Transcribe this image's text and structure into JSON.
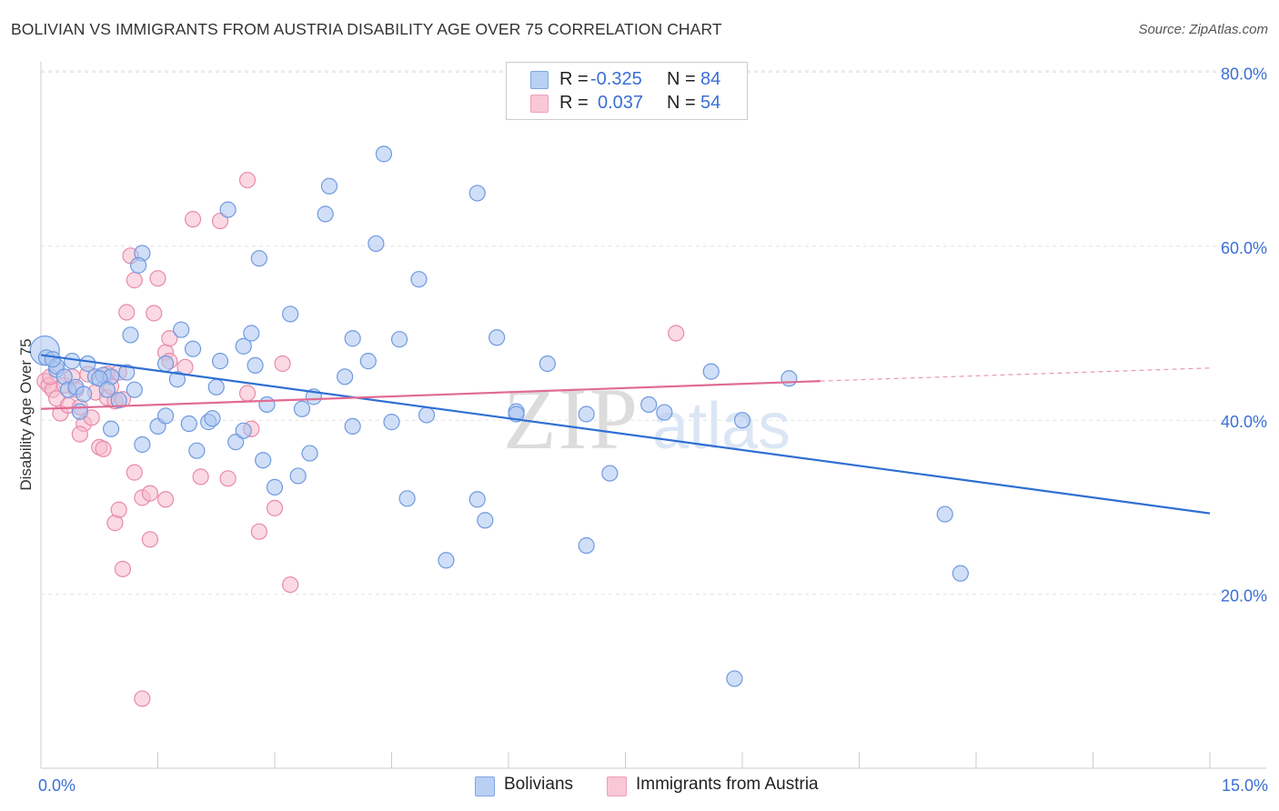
{
  "title": "BOLIVIAN VS IMMIGRANTS FROM AUSTRIA DISABILITY AGE OVER 75 CORRELATION CHART",
  "source": "Source: ZipAtlas.com",
  "watermark": {
    "zip": "ZIP",
    "atlas": "atlas"
  },
  "legend": {
    "rows": [
      {
        "r_label": "R =",
        "r_value": "-0.325",
        "n_label": "N =",
        "n_value": "84"
      },
      {
        "r_label": "R =",
        "r_value": "0.037",
        "n_label": "N =",
        "n_value": "54"
      }
    ]
  },
  "bottom_legend": {
    "series1": "Bolivians",
    "series2": "Immigrants from Austria"
  },
  "colors": {
    "blue_fill": "#a9c4f0",
    "blue_stroke": "#6f9ae0",
    "blue_line": "#2f6fd3",
    "pink_fill": "#f6b9cc",
    "pink_stroke": "#e98aa8",
    "pink_line": "#e06b92",
    "tick_label": "#3a6fd6"
  },
  "chart_data": {
    "type": "scatter",
    "title": "BOLIVIAN VS IMMIGRANTS FROM AUSTRIA DISABILITY AGE OVER 75 CORRELATION CHART",
    "xlabel": "",
    "ylabel": "Disability Age Over 75",
    "xlim": [
      0,
      15
    ],
    "ylim": [
      0,
      82
    ],
    "x_tick_labels": [
      {
        "value": 0,
        "label": "0.0%"
      },
      {
        "value": 15,
        "label": "15.0%"
      }
    ],
    "y_tick_labels": [
      {
        "value": 20,
        "label": "20.0%"
      },
      {
        "value": 40,
        "label": "40.0%"
      },
      {
        "value": 60,
        "label": "60.0%"
      },
      {
        "value": 80,
        "label": "80.0%"
      }
    ],
    "grid": true,
    "legend_position": "top-center",
    "series": [
      {
        "name": "Bolivians",
        "color": "#a9c4f0",
        "stats": {
          "R": -0.325,
          "N": 84
        },
        "trend": {
          "x": [
            0.0,
            15.0
          ],
          "y": [
            47.5,
            29.3
          ]
        },
        "points": [
          [
            0.05,
            48.0
          ],
          [
            0.07,
            47.2
          ],
          [
            0.2,
            45.8
          ],
          [
            0.2,
            46.2
          ],
          [
            0.3,
            45.0
          ],
          [
            0.4,
            46.8
          ],
          [
            0.35,
            43.5
          ],
          [
            0.45,
            43.8
          ],
          [
            0.55,
            43.0
          ],
          [
            0.6,
            46.5
          ],
          [
            0.7,
            45.0
          ],
          [
            0.8,
            45.2
          ],
          [
            0.9,
            45.0
          ],
          [
            1.1,
            45.5
          ],
          [
            1.2,
            43.5
          ],
          [
            0.75,
            44.8
          ],
          [
            0.5,
            41.0
          ],
          [
            0.85,
            43.5
          ],
          [
            1.15,
            49.8
          ],
          [
            1.3,
            59.2
          ],
          [
            1.25,
            57.8
          ],
          [
            1.0,
            42.3
          ],
          [
            0.9,
            39.0
          ],
          [
            1.3,
            37.2
          ],
          [
            1.5,
            39.3
          ],
          [
            1.6,
            40.5
          ],
          [
            1.6,
            46.5
          ],
          [
            1.75,
            44.7
          ],
          [
            1.8,
            50.4
          ],
          [
            1.95,
            48.2
          ],
          [
            1.9,
            39.6
          ],
          [
            2.0,
            36.5
          ],
          [
            2.15,
            39.8
          ],
          [
            2.2,
            40.2
          ],
          [
            2.3,
            46.8
          ],
          [
            2.25,
            43.8
          ],
          [
            2.4,
            64.2
          ],
          [
            2.5,
            37.5
          ],
          [
            2.6,
            38.8
          ],
          [
            2.6,
            48.5
          ],
          [
            2.7,
            50.0
          ],
          [
            2.75,
            46.3
          ],
          [
            2.8,
            58.6
          ],
          [
            2.85,
            35.4
          ],
          [
            2.9,
            41.8
          ],
          [
            3.0,
            32.3
          ],
          [
            3.2,
            52.2
          ],
          [
            3.3,
            33.6
          ],
          [
            3.35,
            41.3
          ],
          [
            3.5,
            42.7
          ],
          [
            3.45,
            36.2
          ],
          [
            3.65,
            63.7
          ],
          [
            3.7,
            66.9
          ],
          [
            3.9,
            45.0
          ],
          [
            4.0,
            39.3
          ],
          [
            4.0,
            49.4
          ],
          [
            4.2,
            46.8
          ],
          [
            4.3,
            60.3
          ],
          [
            4.4,
            70.6
          ],
          [
            4.5,
            39.8
          ],
          [
            4.6,
            49.3
          ],
          [
            4.7,
            31.0
          ],
          [
            4.85,
            56.2
          ],
          [
            4.95,
            40.6
          ],
          [
            5.2,
            23.9
          ],
          [
            5.6,
            66.1
          ],
          [
            5.6,
            30.9
          ],
          [
            5.7,
            28.5
          ],
          [
            5.85,
            49.5
          ],
          [
            6.1,
            41.0
          ],
          [
            6.1,
            40.7
          ],
          [
            6.5,
            46.5
          ],
          [
            7.0,
            40.7
          ],
          [
            7.0,
            25.6
          ],
          [
            7.3,
            33.9
          ],
          [
            7.8,
            41.8
          ],
          [
            8.0,
            40.9
          ],
          [
            8.6,
            45.6
          ],
          [
            8.9,
            10.3
          ],
          [
            9.0,
            40.0
          ],
          [
            9.6,
            44.8
          ],
          [
            11.6,
            29.2
          ],
          [
            11.8,
            22.4
          ],
          [
            0.15,
            47.0
          ]
        ]
      },
      {
        "name": "Immigrants from Austria",
        "color": "#f6b9cc",
        "stats": {
          "R": 0.037,
          "N": 54
        },
        "trend": {
          "x": [
            0.0,
            10.0
          ],
          "y": [
            41.3,
            44.5
          ]
        },
        "trend_extension": {
          "x": [
            10.0,
            15.0
          ],
          "y": [
            44.5,
            46.0
          ]
        },
        "points": [
          [
            0.05,
            44.5
          ],
          [
            0.1,
            44.0
          ],
          [
            0.15,
            43.5
          ],
          [
            0.2,
            42.5
          ],
          [
            0.3,
            44.0
          ],
          [
            0.25,
            40.8
          ],
          [
            0.35,
            41.7
          ],
          [
            0.4,
            45.0
          ],
          [
            0.45,
            43.5
          ],
          [
            0.5,
            41.5
          ],
          [
            0.55,
            39.6
          ],
          [
            0.6,
            45.3
          ],
          [
            0.65,
            40.3
          ],
          [
            0.7,
            43.2
          ],
          [
            0.75,
            36.9
          ],
          [
            0.5,
            38.4
          ],
          [
            0.8,
            36.7
          ],
          [
            0.85,
            42.6
          ],
          [
            0.85,
            45.3
          ],
          [
            0.9,
            43.9
          ],
          [
            0.95,
            42.2
          ],
          [
            1.0,
            45.5
          ],
          [
            1.05,
            42.4
          ],
          [
            1.1,
            52.4
          ],
          [
            1.15,
            58.9
          ],
          [
            1.2,
            56.1
          ],
          [
            1.2,
            34.0
          ],
          [
            0.95,
            28.2
          ],
          [
            1.0,
            29.7
          ],
          [
            1.05,
            22.9
          ],
          [
            1.3,
            31.1
          ],
          [
            1.4,
            31.6
          ],
          [
            1.4,
            26.3
          ],
          [
            1.45,
            52.3
          ],
          [
            1.5,
            56.3
          ],
          [
            1.6,
            47.8
          ],
          [
            1.65,
            49.4
          ],
          [
            1.65,
            46.8
          ],
          [
            1.6,
            30.9
          ],
          [
            1.85,
            46.1
          ],
          [
            1.95,
            63.1
          ],
          [
            2.05,
            33.5
          ],
          [
            2.4,
            33.3
          ],
          [
            2.3,
            62.9
          ],
          [
            2.65,
            43.1
          ],
          [
            2.7,
            39.0
          ],
          [
            2.65,
            67.6
          ],
          [
            2.8,
            27.2
          ],
          [
            3.0,
            29.9
          ],
          [
            3.1,
            46.5
          ],
          [
            3.2,
            21.1
          ],
          [
            1.3,
            8.0
          ],
          [
            8.15,
            50.0
          ],
          [
            0.12,
            45.0
          ]
        ]
      }
    ]
  }
}
